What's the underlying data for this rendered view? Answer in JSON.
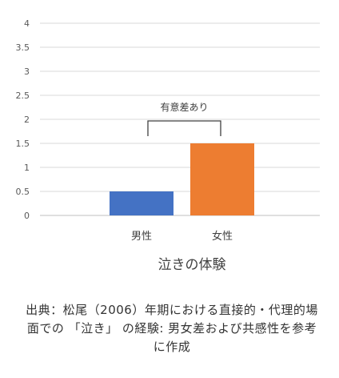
{
  "chart_data": {
    "type": "bar",
    "categories": [
      "男性",
      "女性"
    ],
    "values": [
      0.5,
      1.5
    ],
    "colors": [
      "#4472c4",
      "#ed7d31"
    ],
    "ylim": [
      0,
      4
    ],
    "yticks": [
      "0",
      "0.5",
      "1",
      "1.5",
      "2",
      "2.5",
      "3",
      "3.5",
      "4"
    ],
    "xlabel": "泣きの体験",
    "ylabel": "",
    "title": "",
    "grid": true,
    "annotation": "有意差あり"
  },
  "caption": "出典：松尾（2006）年期における直接的・代理的場面での 「泣き」 の経験: 男女差および共感性を参考に作成"
}
